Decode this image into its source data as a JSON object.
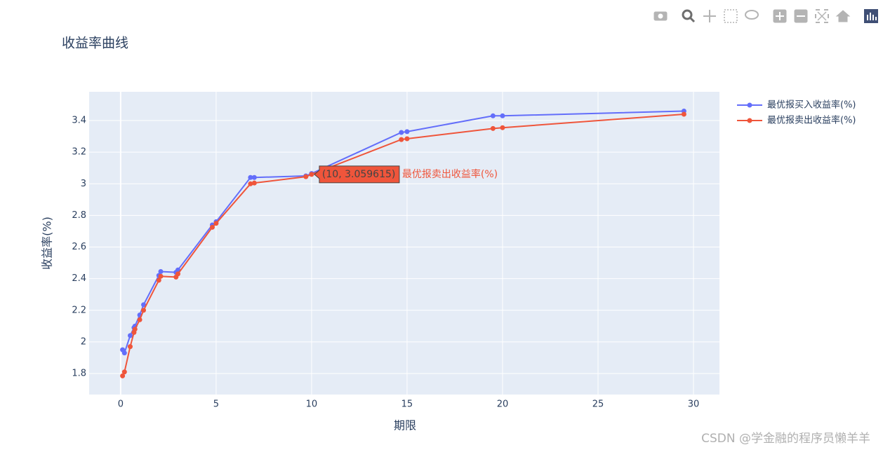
{
  "chart_data": {
    "type": "line",
    "title": "收益率曲线",
    "x_label": "期限",
    "y_label": "收益率(%)",
    "x": [
      0.1,
      0.2,
      0.5,
      0.7,
      0.75,
      1,
      1.2,
      2,
      2.1,
      2.9,
      3,
      4.8,
      5,
      6.8,
      7,
      9.7,
      10,
      14.7,
      15,
      19.5,
      20,
      29.5
    ],
    "series": [
      {
        "name": "最优报买入收益率(%)",
        "color": "#636efa",
        "values": [
          1.95,
          1.93,
          2.04,
          2.09,
          2.1,
          2.17,
          2.235,
          2.42,
          2.445,
          2.44,
          2.455,
          2.74,
          2.76,
          3.04,
          3.04,
          3.05,
          3.065,
          3.325,
          3.33,
          3.43,
          3.43,
          3.46
        ]
      },
      {
        "name": "最优报卖出收益率(%)",
        "color": "#ef553b",
        "values": [
          1.785,
          1.81,
          1.97,
          2.06,
          2.08,
          2.14,
          2.2,
          2.39,
          2.415,
          2.41,
          2.43,
          2.725,
          2.75,
          3.0,
          3.005,
          3.045,
          3.059615,
          3.28,
          3.285,
          3.35,
          3.355,
          3.44
        ]
      }
    ],
    "xlim": [
      -1.65,
      31.36
    ],
    "ylim": [
      1.667,
      3.582
    ],
    "xticks": [
      0,
      5,
      10,
      15,
      20,
      25,
      30
    ],
    "yticks": [
      1.8,
      2,
      2.2,
      2.4,
      2.6,
      2.8,
      3,
      3.2,
      3.4
    ],
    "grid": true,
    "legend": "top-right",
    "hover": {
      "series": 1,
      "index": 16,
      "text": "(10, 3.059615)"
    },
    "watermark": "CSDN @学金融的程序员懒羊羊"
  }
}
